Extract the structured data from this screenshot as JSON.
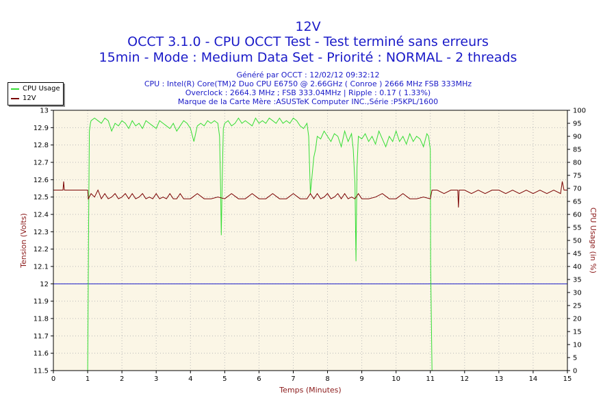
{
  "chart_data": {
    "type": "line",
    "title": "12V",
    "subtitle1": "OCCT 3.1.0 - CPU OCCT Test - Test terminé sans erreurs",
    "subtitle2": "15min - Mode : Medium Data Set - Priorité : NORMAL - 2 threads",
    "info": [
      "Généré par OCCT : 12/02/12 09:32:12",
      "CPU : Intel(R) Core(TM)2 Duo CPU E6750 @ 2.66GHz ( Conroe ) 2666 MHz FSB 333MHz",
      "Overclock : 2664.3 MHz ; FSB 333.04MHz | Ripple : 0.17 ( 1.33%)",
      "Marque de la Carte Mère :ASUSTeK Computer INC.,Série :P5KPL/1600"
    ],
    "xlabel": "Temps (Minutes)",
    "ylabel": "Tension (Volts)",
    "y2label": "CPU Usage (in %)",
    "xlim": [
      0,
      15
    ],
    "ylim": [
      11.5,
      13
    ],
    "y2lim": [
      0,
      100
    ],
    "x_ticks": [
      "0",
      "1",
      "2",
      "3",
      "4",
      "5",
      "6",
      "7",
      "8",
      "9",
      "10",
      "11",
      "12",
      "13",
      "14",
      "15"
    ],
    "y_ticks": [
      "11.5",
      "11.6",
      "11.7",
      "11.8",
      "11.9",
      "12",
      "12.1",
      "12.2",
      "12.3",
      "12.4",
      "12.5",
      "12.6",
      "12.7",
      "12.8",
      "12.9",
      "13"
    ],
    "y2_ticks": [
      "0",
      "5",
      "10",
      "15",
      "20",
      "25",
      "30",
      "35",
      "40",
      "45",
      "50",
      "55",
      "60",
      "65",
      "70",
      "75",
      "80",
      "85",
      "90",
      "95",
      "100"
    ],
    "reference_line": {
      "y": 12.0,
      "color": "#1a1ac8"
    },
    "series": [
      {
        "name": "CPU Usage",
        "axis": "right",
        "color": "#33dd33",
        "x": [
          0,
          1.0,
          1.01,
          1.03,
          1.05,
          1.08,
          1.1,
          1.2,
          1.3,
          1.4,
          1.5,
          1.6,
          1.7,
          1.8,
          1.9,
          2.0,
          2.1,
          2.2,
          2.3,
          2.4,
          2.5,
          2.6,
          2.7,
          2.8,
          2.9,
          3.0,
          3.1,
          3.2,
          3.3,
          3.4,
          3.5,
          3.6,
          3.7,
          3.8,
          3.9,
          4.0,
          4.1,
          4.2,
          4.3,
          4.4,
          4.5,
          4.6,
          4.7,
          4.8,
          4.85,
          4.88,
          4.9,
          4.93,
          4.96,
          5.0,
          5.1,
          5.2,
          5.3,
          5.4,
          5.5,
          5.6,
          5.7,
          5.8,
          5.9,
          6.0,
          6.1,
          6.2,
          6.3,
          6.4,
          6.5,
          6.6,
          6.7,
          6.8,
          6.9,
          7.0,
          7.1,
          7.2,
          7.3,
          7.4,
          7.45,
          7.5,
          7.55,
          7.6,
          7.65,
          7.7,
          7.8,
          7.9,
          8.0,
          8.1,
          8.2,
          8.3,
          8.4,
          8.5,
          8.6,
          8.7,
          8.75,
          8.8,
          8.83,
          8.86,
          8.9,
          9.0,
          9.1,
          9.2,
          9.3,
          9.4,
          9.5,
          9.6,
          9.7,
          9.8,
          9.9,
          10.0,
          10.1,
          10.2,
          10.3,
          10.4,
          10.5,
          10.6,
          10.7,
          10.8,
          10.9,
          10.95,
          11.0,
          11.01,
          11.05,
          15
        ],
        "values": [
          0,
          0,
          20,
          60,
          92,
          95,
          96,
          97,
          96,
          95,
          97,
          96,
          92,
          95,
          94,
          96,
          95,
          93,
          96,
          94,
          95,
          93,
          96,
          95,
          94,
          93,
          96,
          95,
          94,
          93,
          95,
          92,
          94,
          96,
          95,
          93,
          88,
          94,
          95,
          94,
          96,
          95,
          96,
          95,
          90,
          70,
          52,
          75,
          93,
          95,
          96,
          94,
          95,
          97,
          95,
          96,
          95,
          94,
          97,
          95,
          96,
          95,
          97,
          96,
          95,
          97,
          95,
          96,
          95,
          97,
          96,
          94,
          93,
          95,
          90,
          68,
          75,
          82,
          85,
          90,
          89,
          92,
          90,
          88,
          91,
          90,
          86,
          92,
          88,
          91,
          85,
          72,
          42,
          78,
          90,
          89,
          91,
          88,
          90,
          87,
          92,
          89,
          86,
          90,
          88,
          92,
          88,
          90,
          87,
          91,
          88,
          90,
          89,
          86,
          91,
          90,
          85,
          40,
          0,
          0
        ]
      },
      {
        "name": "12V",
        "axis": "left",
        "color": "#7a0000",
        "x": [
          0,
          0.28,
          0.3,
          0.32,
          1.0,
          1.02,
          1.1,
          1.2,
          1.3,
          1.4,
          1.5,
          1.6,
          1.7,
          1.8,
          1.9,
          2.0,
          2.1,
          2.2,
          2.3,
          2.4,
          2.5,
          2.6,
          2.7,
          2.8,
          2.9,
          3.0,
          3.1,
          3.2,
          3.3,
          3.4,
          3.5,
          3.6,
          3.7,
          3.8,
          4.0,
          4.2,
          4.4,
          4.6,
          4.8,
          5.0,
          5.2,
          5.4,
          5.6,
          5.8,
          6.0,
          6.2,
          6.4,
          6.6,
          6.8,
          7.0,
          7.2,
          7.4,
          7.5,
          7.6,
          7.7,
          7.8,
          7.9,
          8.0,
          8.1,
          8.2,
          8.3,
          8.4,
          8.5,
          8.6,
          8.7,
          8.8,
          8.9,
          9.0,
          9.2,
          9.4,
          9.6,
          9.8,
          10.0,
          10.2,
          10.4,
          10.6,
          10.8,
          11.0,
          11.05,
          11.2,
          11.4,
          11.6,
          11.8,
          11.82,
          11.84,
          12.0,
          12.2,
          12.4,
          12.6,
          12.8,
          13.0,
          13.2,
          13.4,
          13.6,
          13.8,
          14.0,
          14.2,
          14.4,
          14.6,
          14.8,
          14.85,
          14.9,
          15
        ],
        "values": [
          12.54,
          12.54,
          12.59,
          12.54,
          12.54,
          12.49,
          12.52,
          12.5,
          12.54,
          12.49,
          12.52,
          12.49,
          12.5,
          12.52,
          12.49,
          12.5,
          12.52,
          12.49,
          12.52,
          12.49,
          12.5,
          12.52,
          12.49,
          12.5,
          12.49,
          12.52,
          12.49,
          12.5,
          12.49,
          12.52,
          12.49,
          12.49,
          12.52,
          12.49,
          12.49,
          12.52,
          12.49,
          12.49,
          12.5,
          12.49,
          12.52,
          12.49,
          12.49,
          12.52,
          12.49,
          12.49,
          12.52,
          12.49,
          12.49,
          12.52,
          12.49,
          12.49,
          12.52,
          12.49,
          12.52,
          12.49,
          12.5,
          12.52,
          12.49,
          12.5,
          12.52,
          12.49,
          12.52,
          12.49,
          12.5,
          12.49,
          12.52,
          12.49,
          12.49,
          12.5,
          12.52,
          12.49,
          12.49,
          12.52,
          12.49,
          12.49,
          12.5,
          12.49,
          12.54,
          12.54,
          12.52,
          12.54,
          12.54,
          12.44,
          12.54,
          12.54,
          12.52,
          12.54,
          12.52,
          12.54,
          12.54,
          12.52,
          12.54,
          12.52,
          12.54,
          12.52,
          12.54,
          12.52,
          12.54,
          12.52,
          12.59,
          12.54,
          12.54
        ]
      }
    ],
    "legend_position": "top-left",
    "grid": false
  }
}
